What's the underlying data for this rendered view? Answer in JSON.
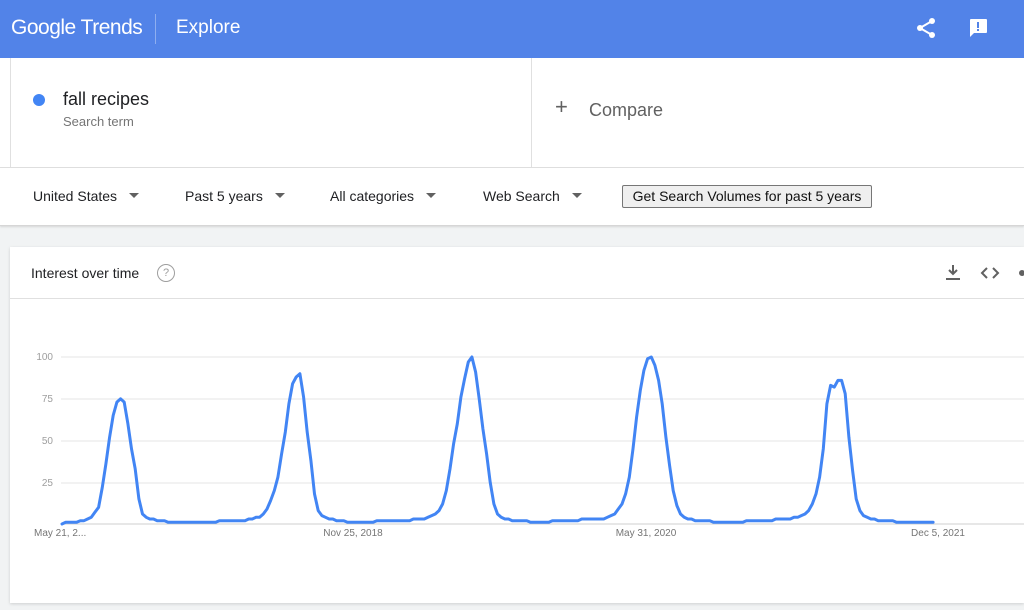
{
  "header": {
    "logo_text": "Google Trends",
    "section": "Explore",
    "icons": [
      "share-icon",
      "feedback-icon"
    ]
  },
  "search_term": {
    "name": "fall recipes",
    "type_label": "Search term",
    "color": "#4285f4"
  },
  "compare": {
    "plus": "+",
    "label": "Compare"
  },
  "filters": {
    "region": "United States",
    "time_range": "Past 5 years",
    "category": "All categories",
    "search_type": "Web Search",
    "volume_button": "Get Search Volumes for past 5 years"
  },
  "widget": {
    "title": "Interest over time",
    "help": "?",
    "actions": [
      "download-icon",
      "embed-icon",
      "share-icon"
    ]
  },
  "chart_data": {
    "type": "line",
    "title": "",
    "xlabel": "",
    "ylabel": "",
    "ylim": [
      0,
      100
    ],
    "yticks": [
      "100",
      "75",
      "50",
      "25"
    ],
    "xtick_labels": [
      "May 21, 2...",
      "Nov 25, 2018",
      "May 31, 2020",
      "Dec 5, 2021"
    ],
    "xtick_weeks": [
      0,
      80,
      160,
      240
    ],
    "grid": true,
    "line_color": "#4285f4",
    "series": [
      {
        "values": [
          0,
          1,
          1,
          1,
          1,
          2,
          2,
          3,
          4,
          7,
          10,
          22,
          36,
          52,
          65,
          73,
          75,
          73,
          60,
          45,
          33,
          15,
          6,
          4,
          3,
          3,
          2,
          2,
          2,
          1,
          1,
          1,
          1,
          1,
          1,
          1,
          1,
          1,
          1,
          1,
          1,
          1,
          1,
          2,
          2,
          2,
          2,
          2,
          2,
          2,
          2,
          3,
          3,
          4,
          4,
          6,
          9,
          14,
          20,
          28,
          42,
          55,
          72,
          84,
          88,
          90,
          76,
          55,
          38,
          18,
          8,
          5,
          4,
          3,
          3,
          2,
          2,
          2,
          1,
          1,
          1,
          1,
          1,
          1,
          1,
          1,
          2,
          2,
          2,
          2,
          2,
          2,
          2,
          2,
          2,
          2,
          3,
          3,
          3,
          3,
          4,
          5,
          6,
          8,
          12,
          20,
          33,
          48,
          60,
          76,
          87,
          97,
          100,
          91,
          75,
          57,
          42,
          25,
          12,
          6,
          4,
          3,
          3,
          2,
          2,
          2,
          2,
          2,
          1,
          1,
          1,
          1,
          1,
          1,
          2,
          2,
          2,
          2,
          2,
          2,
          2,
          2,
          3,
          3,
          3,
          3,
          3,
          3,
          3,
          4,
          5,
          6,
          9,
          12,
          18,
          28,
          45,
          64,
          80,
          92,
          99,
          100,
          95,
          86,
          72,
          52,
          35,
          20,
          11,
          6,
          4,
          3,
          3,
          2,
          2,
          2,
          2,
          2,
          1,
          1,
          1,
          1,
          1,
          1,
          1,
          1,
          1,
          2,
          2,
          2,
          2,
          2,
          2,
          2,
          2,
          3,
          3,
          3,
          3,
          3,
          4,
          4,
          5,
          6,
          8,
          12,
          18,
          28,
          45,
          72,
          83,
          82,
          86,
          86,
          78,
          52,
          32,
          15,
          8,
          5,
          4,
          3,
          3,
          2,
          2,
          2,
          2,
          2,
          1,
          1,
          1,
          1,
          1,
          1,
          1,
          1,
          1,
          1,
          1
        ]
      }
    ]
  }
}
